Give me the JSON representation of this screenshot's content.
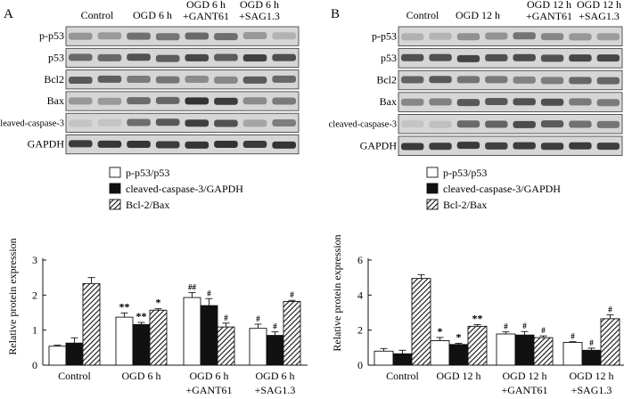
{
  "panels": [
    {
      "letter": "A",
      "blot": {
        "columns": [
          "Control",
          "OGD 6 h",
          "OGD 6 h\n+GANT61",
          "OGD 6 h\n+SAG1.3"
        ],
        "rows": [
          "p-p53",
          "p53",
          "Bcl2",
          "Bax",
          "cleaved-caspase-3",
          "GAPDH"
        ]
      }
    },
    {
      "letter": "B",
      "blot": {
        "columns": [
          "Control",
          "OGD 12 h",
          "OGD 12 h\n+GANT61",
          "OGD 12 h\n+SAG1.3"
        ],
        "rows": [
          "p-p53",
          "p53",
          "Bcl2",
          "Bax",
          "cleaved-caspase-3",
          "GAPDH"
        ]
      }
    }
  ],
  "chart_data": [
    {
      "type": "bar",
      "panel": "A",
      "categories": [
        "Control",
        "OGD 6 h",
        "OGD 6 h\n+GANT61",
        "OGD 6 h\n+SAG1.3"
      ],
      "ylabel": "Relative protein expression",
      "ylim": [
        0,
        3
      ],
      "yticks": [
        0,
        1,
        2,
        3
      ],
      "legend": "top-left",
      "series": [
        {
          "name": "p-p53/p53",
          "fill": "white",
          "values": [
            0.54,
            1.37,
            1.93,
            1.05
          ],
          "errors": [
            0.03,
            0.12,
            0.14,
            0.12
          ],
          "marks": [
            "",
            "**",
            "##",
            "#"
          ]
        },
        {
          "name": "cleaved-caspase-3/GAPDH",
          "fill": "black",
          "values": [
            0.63,
            1.16,
            1.7,
            0.85
          ],
          "errors": [
            0.15,
            0.06,
            0.2,
            0.1
          ],
          "marks": [
            "",
            "**",
            "#",
            "#"
          ]
        },
        {
          "name": "Bcl-2/Bax",
          "fill": "hatch",
          "values": [
            2.33,
            1.57,
            1.09,
            1.82
          ],
          "errors": [
            0.17,
            0.04,
            0.11,
            0.03
          ],
          "marks": [
            "",
            "*",
            "#",
            "#"
          ]
        }
      ]
    },
    {
      "type": "bar",
      "panel": "B",
      "categories": [
        "Control",
        "OGD 12 h",
        "OGD 12 h\n+GANT61",
        "OGD 12 h\n+SAG1.3"
      ],
      "ylabel": "Relative protein expression",
      "ylim": [
        0,
        6
      ],
      "yticks": [
        0,
        2,
        4,
        6
      ],
      "legend": "top-left",
      "series": [
        {
          "name": "p-p53/p53",
          "fill": "white",
          "values": [
            0.8,
            1.4,
            1.78,
            1.3
          ],
          "errors": [
            0.15,
            0.18,
            0.12,
            0.04
          ],
          "marks": [
            "",
            "*",
            "#",
            "#"
          ]
        },
        {
          "name": "cleaved-caspase-3/GAPDH",
          "fill": "black",
          "values": [
            0.65,
            1.18,
            1.72,
            0.85
          ],
          "errors": [
            0.2,
            0.07,
            0.2,
            0.12
          ],
          "marks": [
            "",
            "*",
            "#",
            "#"
          ]
        },
        {
          "name": "Bcl-2/Bax",
          "fill": "hatch",
          "values": [
            4.95,
            2.22,
            1.57,
            2.65
          ],
          "errors": [
            0.22,
            0.1,
            0.1,
            0.22
          ],
          "marks": [
            "",
            "**",
            "#",
            "#"
          ]
        }
      ]
    }
  ]
}
